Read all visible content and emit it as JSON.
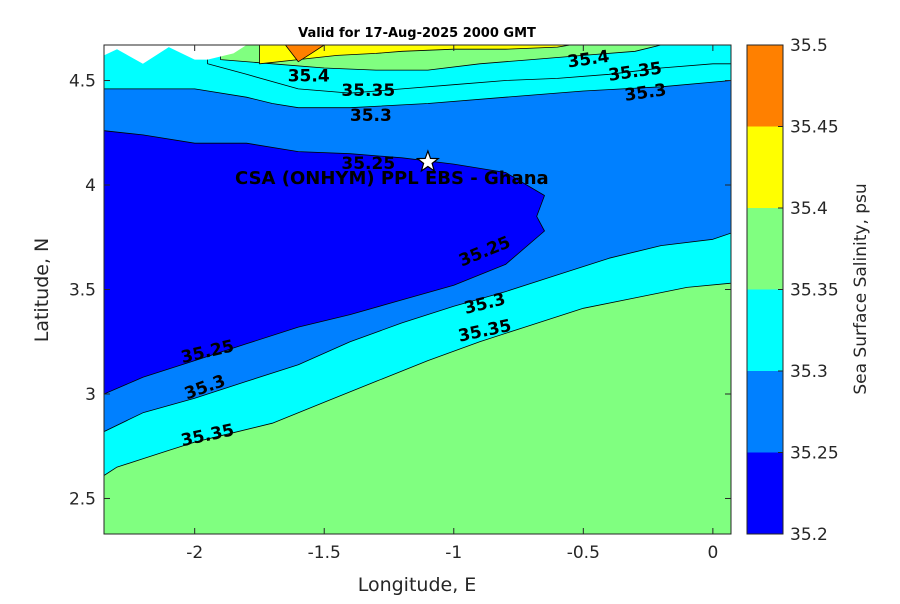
{
  "chart_data": {
    "type": "contour",
    "title": "Valid for 17-Aug-2025 2000 GMT",
    "xlabel": "Longitude, E",
    "ylabel": "Latitude, N",
    "xlim": [
      -2.35,
      0.07
    ],
    "ylim": [
      2.33,
      4.67
    ],
    "xticks": [
      -2,
      -1.5,
      -1,
      -0.5,
      0
    ],
    "xtick_labels": [
      "-2",
      "-1.5",
      "-1",
      "-0.5",
      "0"
    ],
    "yticks": [
      2.5,
      3,
      3.5,
      4,
      4.5
    ],
    "ytick_labels": [
      "2.5",
      "3",
      "3.5",
      "4",
      "4.5"
    ],
    "levels": [
      35.2,
      35.25,
      35.3,
      35.35,
      35.4,
      35.45,
      35.5
    ],
    "colors": [
      "#0000ff",
      "#0080ff",
      "#00ffff",
      "#80ff80",
      "#ffff00",
      "#ff8000"
    ],
    "colorbar": {
      "label": "Sea Surface Salinity, psu",
      "ticks": [
        35.2,
        35.25,
        35.3,
        35.35,
        35.4,
        35.45,
        35.5
      ],
      "tick_labels": [
        "35.2",
        "35.25",
        "35.3",
        "35.35",
        "35.4",
        "35.45",
        "35.5"
      ]
    },
    "regions": [
      {
        "level": 35.35,
        "points": [
          [
            -2.35,
            2.33
          ],
          [
            0.07,
            2.33
          ],
          [
            0.07,
            4.67
          ],
          [
            -2.35,
            4.67
          ]
        ]
      },
      {
        "level": 35.3,
        "points": [
          [
            -2.35,
            2.61
          ],
          [
            -2.3,
            2.65
          ],
          [
            -2.2,
            2.69
          ],
          [
            -2.1,
            2.73
          ],
          [
            -2.0,
            2.77
          ],
          [
            -1.9,
            2.8
          ],
          [
            -1.7,
            2.86
          ],
          [
            -1.5,
            2.96
          ],
          [
            -1.3,
            3.06
          ],
          [
            -1.1,
            3.16
          ],
          [
            -0.9,
            3.25
          ],
          [
            -0.7,
            3.33
          ],
          [
            -0.5,
            3.41
          ],
          [
            -0.3,
            3.46
          ],
          [
            -0.1,
            3.51
          ],
          [
            0.07,
            3.53
          ],
          [
            0.07,
            4.67
          ],
          [
            -2.35,
            4.67
          ]
        ]
      },
      {
        "level": 35.25,
        "points": [
          [
            -2.35,
            2.82
          ],
          [
            -2.2,
            2.91
          ],
          [
            -2.0,
            2.98
          ],
          [
            -1.8,
            3.06
          ],
          [
            -1.6,
            3.14
          ],
          [
            -1.4,
            3.25
          ],
          [
            -1.2,
            3.34
          ],
          [
            -1.0,
            3.42
          ],
          [
            -0.8,
            3.49
          ],
          [
            -0.6,
            3.57
          ],
          [
            -0.4,
            3.65
          ],
          [
            -0.2,
            3.71
          ],
          [
            0.0,
            3.74
          ],
          [
            0.07,
            3.77
          ],
          [
            0.07,
            4.5
          ],
          [
            -0.2,
            4.47
          ],
          [
            -0.5,
            4.45
          ],
          [
            -0.8,
            4.42
          ],
          [
            -1.1,
            4.39
          ],
          [
            -1.4,
            4.37
          ],
          [
            -1.6,
            4.37
          ],
          [
            -1.7,
            4.39
          ],
          [
            -1.8,
            4.42
          ],
          [
            -2.0,
            4.46
          ],
          [
            -2.35,
            4.46
          ]
        ]
      },
      {
        "level": 35.2,
        "points": [
          [
            -2.35,
            3.0
          ],
          [
            -2.2,
            3.08
          ],
          [
            -2.0,
            3.16
          ],
          [
            -1.8,
            3.24
          ],
          [
            -1.6,
            3.32
          ],
          [
            -1.4,
            3.38
          ],
          [
            -1.2,
            3.45
          ],
          [
            -1.0,
            3.52
          ],
          [
            -0.8,
            3.62
          ],
          [
            -0.65,
            3.78
          ],
          [
            -0.68,
            3.85
          ],
          [
            -0.65,
            3.95
          ],
          [
            -0.8,
            4.06
          ],
          [
            -1.0,
            4.1
          ],
          [
            -1.2,
            4.13
          ],
          [
            -1.4,
            4.15
          ],
          [
            -1.6,
            4.16
          ],
          [
            -1.8,
            4.2
          ],
          [
            -2.0,
            4.2
          ],
          [
            -2.2,
            4.24
          ],
          [
            -2.35,
            4.26
          ]
        ]
      },
      {
        "level": 35.3,
        "points": [
          [
            -1.95,
            4.58
          ],
          [
            -1.8,
            4.53
          ],
          [
            -1.6,
            4.46
          ],
          [
            -1.4,
            4.44
          ],
          [
            -1.2,
            4.46
          ],
          [
            -1.0,
            4.48
          ],
          [
            -0.8,
            4.5
          ],
          [
            -0.6,
            4.51
          ],
          [
            -0.4,
            4.53
          ],
          [
            -0.2,
            4.56
          ],
          [
            0.0,
            4.58
          ],
          [
            0.07,
            4.58
          ],
          [
            0.07,
            4.67
          ],
          [
            -1.95,
            4.67
          ]
        ]
      },
      {
        "level": 35.35,
        "points": [
          [
            -1.9,
            4.6
          ],
          [
            -1.7,
            4.58
          ],
          [
            -1.5,
            4.56
          ],
          [
            -1.3,
            4.55
          ],
          [
            -1.1,
            4.55
          ],
          [
            -0.9,
            4.58
          ],
          [
            -0.7,
            4.6
          ],
          [
            -0.5,
            4.62
          ],
          [
            -0.3,
            4.64
          ],
          [
            -0.2,
            4.67
          ],
          [
            -1.9,
            4.67
          ]
        ]
      },
      {
        "level": 35.4,
        "points": [
          [
            -1.75,
            4.58
          ],
          [
            -1.6,
            4.6
          ],
          [
            -1.45,
            4.62
          ],
          [
            -1.3,
            4.63
          ],
          [
            -1.2,
            4.64
          ],
          [
            -1.0,
            4.65
          ],
          [
            -0.8,
            4.65
          ],
          [
            -0.6,
            4.66
          ],
          [
            -0.55,
            4.67
          ],
          [
            -1.75,
            4.67
          ]
        ]
      },
      {
        "level": 35.45,
        "points": [
          [
            -1.6,
            4.59
          ],
          [
            -1.55,
            4.63
          ],
          [
            -1.5,
            4.67
          ],
          [
            -1.65,
            4.67
          ]
        ]
      }
    ],
    "land": [
      [
        -2.35,
        4.67
      ],
      [
        -2.35,
        4.62
      ],
      [
        -2.3,
        4.65
      ],
      [
        -2.2,
        4.58
      ],
      [
        -2.1,
        4.66
      ],
      [
        -2.0,
        4.6
      ],
      [
        -1.95,
        4.6
      ],
      [
        -1.85,
        4.63
      ],
      [
        -1.8,
        4.67
      ]
    ],
    "contour_labels": [
      {
        "text": "35.25",
        "x": -1.95,
        "y": 3.2,
        "angle": -13
      },
      {
        "text": "35.3",
        "x": -1.96,
        "y": 3.03,
        "angle": -20
      },
      {
        "text": "35.35",
        "x": -1.95,
        "y": 2.8,
        "angle": -12
      },
      {
        "text": "35.25",
        "x": -0.88,
        "y": 3.68,
        "angle": -22
      },
      {
        "text": "35.3",
        "x": -0.88,
        "y": 3.43,
        "angle": -14
      },
      {
        "text": "35.35",
        "x": -0.88,
        "y": 3.3,
        "angle": -12
      },
      {
        "text": "35.25",
        "x": -1.33,
        "y": 4.1,
        "angle": 0
      },
      {
        "text": "35.3",
        "x": -1.32,
        "y": 4.33,
        "angle": 0
      },
      {
        "text": "35.35",
        "x": -1.33,
        "y": 4.45,
        "angle": 0
      },
      {
        "text": "35.4",
        "x": -1.56,
        "y": 4.52,
        "angle": 0
      },
      {
        "text": "35.4",
        "x": -0.48,
        "y": 4.6,
        "angle": -8
      },
      {
        "text": "35.35",
        "x": -0.3,
        "y": 4.54,
        "angle": -8
      },
      {
        "text": "35.3",
        "x": -0.26,
        "y": 4.44,
        "angle": -8
      }
    ],
    "site": {
      "label": "CSA (ONHYM) PPL EBS  - Ghana",
      "x": -1.1,
      "y": 4.11
    }
  }
}
